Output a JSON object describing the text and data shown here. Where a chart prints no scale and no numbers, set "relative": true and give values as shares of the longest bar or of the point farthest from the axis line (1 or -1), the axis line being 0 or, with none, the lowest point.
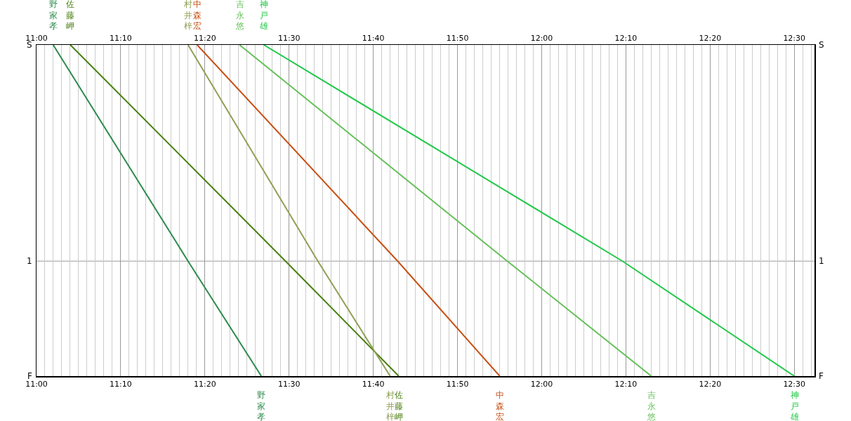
{
  "chart_data": {
    "type": "line",
    "legend": false,
    "grid": "x",
    "marker": "none",
    "line_style": "solid",
    "relative": true,
    "xlim": [
      11,
      12.54
    ],
    "xticks": [
      {
        "value": 11,
        "label": "11:00"
      },
      {
        "value": 11.1667,
        "label": "11:10"
      },
      {
        "value": 11.3333,
        "label": "11:20"
      },
      {
        "value": 11.5,
        "label": "11:30"
      },
      {
        "value": 11.6667,
        "label": "11:40"
      },
      {
        "value": 11.8333,
        "label": "11:50"
      },
      {
        "value": 12,
        "label": "12:00"
      },
      {
        "value": 12.1667,
        "label": "12:10"
      },
      {
        "value": 12.3333,
        "label": "12:20"
      },
      {
        "value": 12.5,
        "label": "12:30"
      }
    ],
    "x2lim": [
      11,
      12.54
    ],
    "x2ticks": [
      {
        "value": 11,
        "label": "11:00"
      },
      {
        "value": 11.1667,
        "label": "11:10"
      },
      {
        "value": 11.3333,
        "label": "11:20"
      },
      {
        "value": 11.5,
        "label": "11:30"
      },
      {
        "value": 11.6667,
        "label": "11:40"
      },
      {
        "value": 11.8333,
        "label": "11:50"
      },
      {
        "value": 12,
        "label": "12:00"
      },
      {
        "value": 12.1667,
        "label": "12:10"
      },
      {
        "value": 12.3333,
        "label": "12:20"
      },
      {
        "value": 12.5,
        "label": "12:30"
      }
    ],
    "annotations": [
      "S",
      "1",
      "F"
    ],
    "ref_lines": [
      {
        "axis": "y",
        "value": -0.653,
        "color": "#bbbbbb"
      }
    ],
    "series": [
      {
        "name": "野家孝",
        "color": "#2e8b4e",
        "x": [
          11.033,
          11.3,
          11.445
        ],
        "values": [
          0,
          -0.653,
          -1
        ]
      },
      {
        "name": "佐藤岬",
        "color": "#4a7f10",
        "x": [
          11.067,
          11.493,
          11.717
        ],
        "values": [
          0,
          -0.653,
          -1
        ]
      },
      {
        "name": "村井梓",
        "color": "#8fa055",
        "x": [
          11.3,
          11.557,
          11.7
        ],
        "values": [
          0,
          -0.653,
          -1
        ]
      },
      {
        "name": "中森宏",
        "color": "#c85014",
        "x": [
          11.318,
          11.715,
          11.917
        ],
        "values": [
          0,
          -0.653,
          -1
        ]
      },
      {
        "name": "吉永悠",
        "color": "#66c05a",
        "x": [
          11.402,
          11.932,
          12.217
        ],
        "values": [
          0,
          -0.653,
          -1
        ]
      },
      {
        "name": "神戸雄",
        "color": "#22c84a",
        "x": [
          11.45,
          12.16,
          12.5
        ],
        "values": [
          0,
          -0.653,
          -1
        ]
      }
    ]
  }
}
